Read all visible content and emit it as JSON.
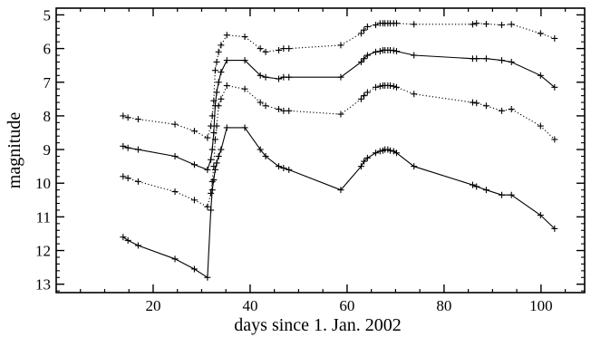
{
  "chart_data": {
    "type": "line",
    "xlabel": "days since 1. Jan. 2002",
    "ylabel": "magnitude",
    "xlim": [
      0,
      109
    ],
    "ylim": [
      13.25,
      4.8
    ],
    "y_inverted": true,
    "grid": false,
    "legend": "none",
    "x_ticks": [
      20,
      40,
      60,
      80,
      100
    ],
    "y_ticks": [
      5,
      6,
      7,
      8,
      9,
      10,
      11,
      12,
      13
    ],
    "series": [
      {
        "style": "dotted",
        "color": "#000000",
        "x": [
          13.8,
          14.8,
          16.9,
          24.5,
          28.5,
          31.2,
          31.9,
          32.2,
          32.5,
          32.8,
          33.1,
          33.5,
          34.0,
          35.2,
          38.9,
          42.1,
          43.2,
          45.9,
          46.9,
          48.0,
          58.7,
          62.9,
          63.5,
          64.2,
          65.9,
          66.8,
          67.4,
          67.8,
          68.4,
          68.9,
          69.6,
          70.2,
          73.8,
          85.9,
          86.7,
          88.7,
          91.9,
          93.9,
          99.9,
          102.8
        ],
        "values": [
          8.0,
          8.05,
          8.1,
          8.25,
          8.45,
          8.65,
          8.3,
          8.0,
          7.55,
          6.65,
          6.4,
          6.1,
          5.9,
          5.6,
          5.65,
          6.0,
          6.1,
          6.05,
          6.0,
          6.0,
          5.9,
          5.55,
          5.45,
          5.35,
          5.3,
          5.25,
          5.25,
          5.25,
          5.25,
          5.25,
          5.25,
          5.25,
          5.28,
          5.28,
          5.25,
          5.27,
          5.3,
          5.28,
          5.55,
          5.7
        ]
      },
      {
        "style": "solid",
        "color": "#000000",
        "x": [
          13.8,
          14.8,
          16.9,
          24.5,
          28.5,
          31.2,
          31.9,
          32.2,
          32.5,
          32.8,
          33.1,
          33.5,
          34.0,
          35.2,
          38.9,
          42.1,
          43.2,
          45.9,
          46.9,
          48.0,
          58.7,
          62.9,
          63.5,
          64.2,
          65.9,
          66.8,
          67.4,
          67.8,
          68.4,
          68.9,
          69.6,
          70.2,
          73.8,
          85.9,
          86.7,
          88.7,
          91.9,
          93.9,
          99.9,
          102.8
        ],
        "values": [
          8.9,
          8.95,
          9.0,
          9.2,
          9.45,
          9.6,
          9.3,
          9.0,
          8.5,
          7.7,
          7.3,
          7.0,
          6.7,
          6.35,
          6.35,
          6.8,
          6.85,
          6.9,
          6.85,
          6.85,
          6.85,
          6.4,
          6.3,
          6.2,
          6.1,
          6.08,
          6.05,
          6.05,
          6.05,
          6.05,
          6.06,
          6.08,
          6.2,
          6.3,
          6.3,
          6.3,
          6.35,
          6.4,
          6.8,
          7.15
        ]
      },
      {
        "style": "dotted",
        "color": "#000000",
        "x": [
          13.8,
          14.8,
          16.9,
          24.5,
          28.5,
          31.2,
          31.9,
          32.2,
          32.5,
          32.8,
          33.1,
          33.5,
          34.0,
          35.2,
          38.9,
          42.1,
          43.2,
          45.9,
          46.9,
          48.0,
          58.7,
          62.9,
          63.5,
          64.2,
          65.9,
          66.8,
          67.4,
          67.8,
          68.4,
          68.9,
          69.6,
          70.2,
          73.8,
          85.9,
          86.7,
          88.7,
          91.9,
          93.9,
          99.9,
          102.8
        ],
        "values": [
          9.8,
          9.85,
          9.95,
          10.25,
          10.5,
          10.7,
          10.3,
          9.95,
          9.5,
          8.7,
          8.3,
          7.7,
          7.5,
          7.1,
          7.2,
          7.6,
          7.7,
          7.8,
          7.85,
          7.85,
          7.95,
          7.5,
          7.4,
          7.3,
          7.15,
          7.12,
          7.1,
          7.1,
          7.1,
          7.1,
          7.12,
          7.15,
          7.35,
          7.6,
          7.62,
          7.7,
          7.85,
          7.8,
          8.3,
          8.7
        ]
      },
      {
        "style": "solid",
        "color": "#000000",
        "x": [
          13.8,
          14.8,
          16.9,
          24.5,
          28.5,
          31.2,
          31.9,
          32.2,
          32.5,
          32.8,
          33.1,
          33.5,
          34.0,
          35.2,
          38.9,
          42.1,
          43.2,
          45.9,
          46.9,
          48.0,
          58.7,
          62.9,
          63.5,
          64.2,
          65.9,
          66.8,
          67.4,
          67.8,
          68.4,
          68.9,
          69.6,
          70.2,
          73.8,
          85.9,
          86.7,
          88.7,
          91.9,
          93.9,
          99.9,
          102.8
        ],
        "values": [
          11.6,
          11.7,
          11.85,
          12.25,
          12.55,
          12.8,
          10.8,
          10.2,
          9.9,
          9.6,
          9.4,
          9.2,
          9.0,
          8.35,
          8.35,
          9.0,
          9.2,
          9.5,
          9.55,
          9.6,
          10.2,
          9.5,
          9.35,
          9.25,
          9.1,
          9.05,
          9.03,
          9.0,
          9.0,
          9.03,
          9.05,
          9.1,
          9.5,
          10.05,
          10.1,
          10.2,
          10.35,
          10.35,
          10.95,
          11.35
        ]
      }
    ]
  }
}
